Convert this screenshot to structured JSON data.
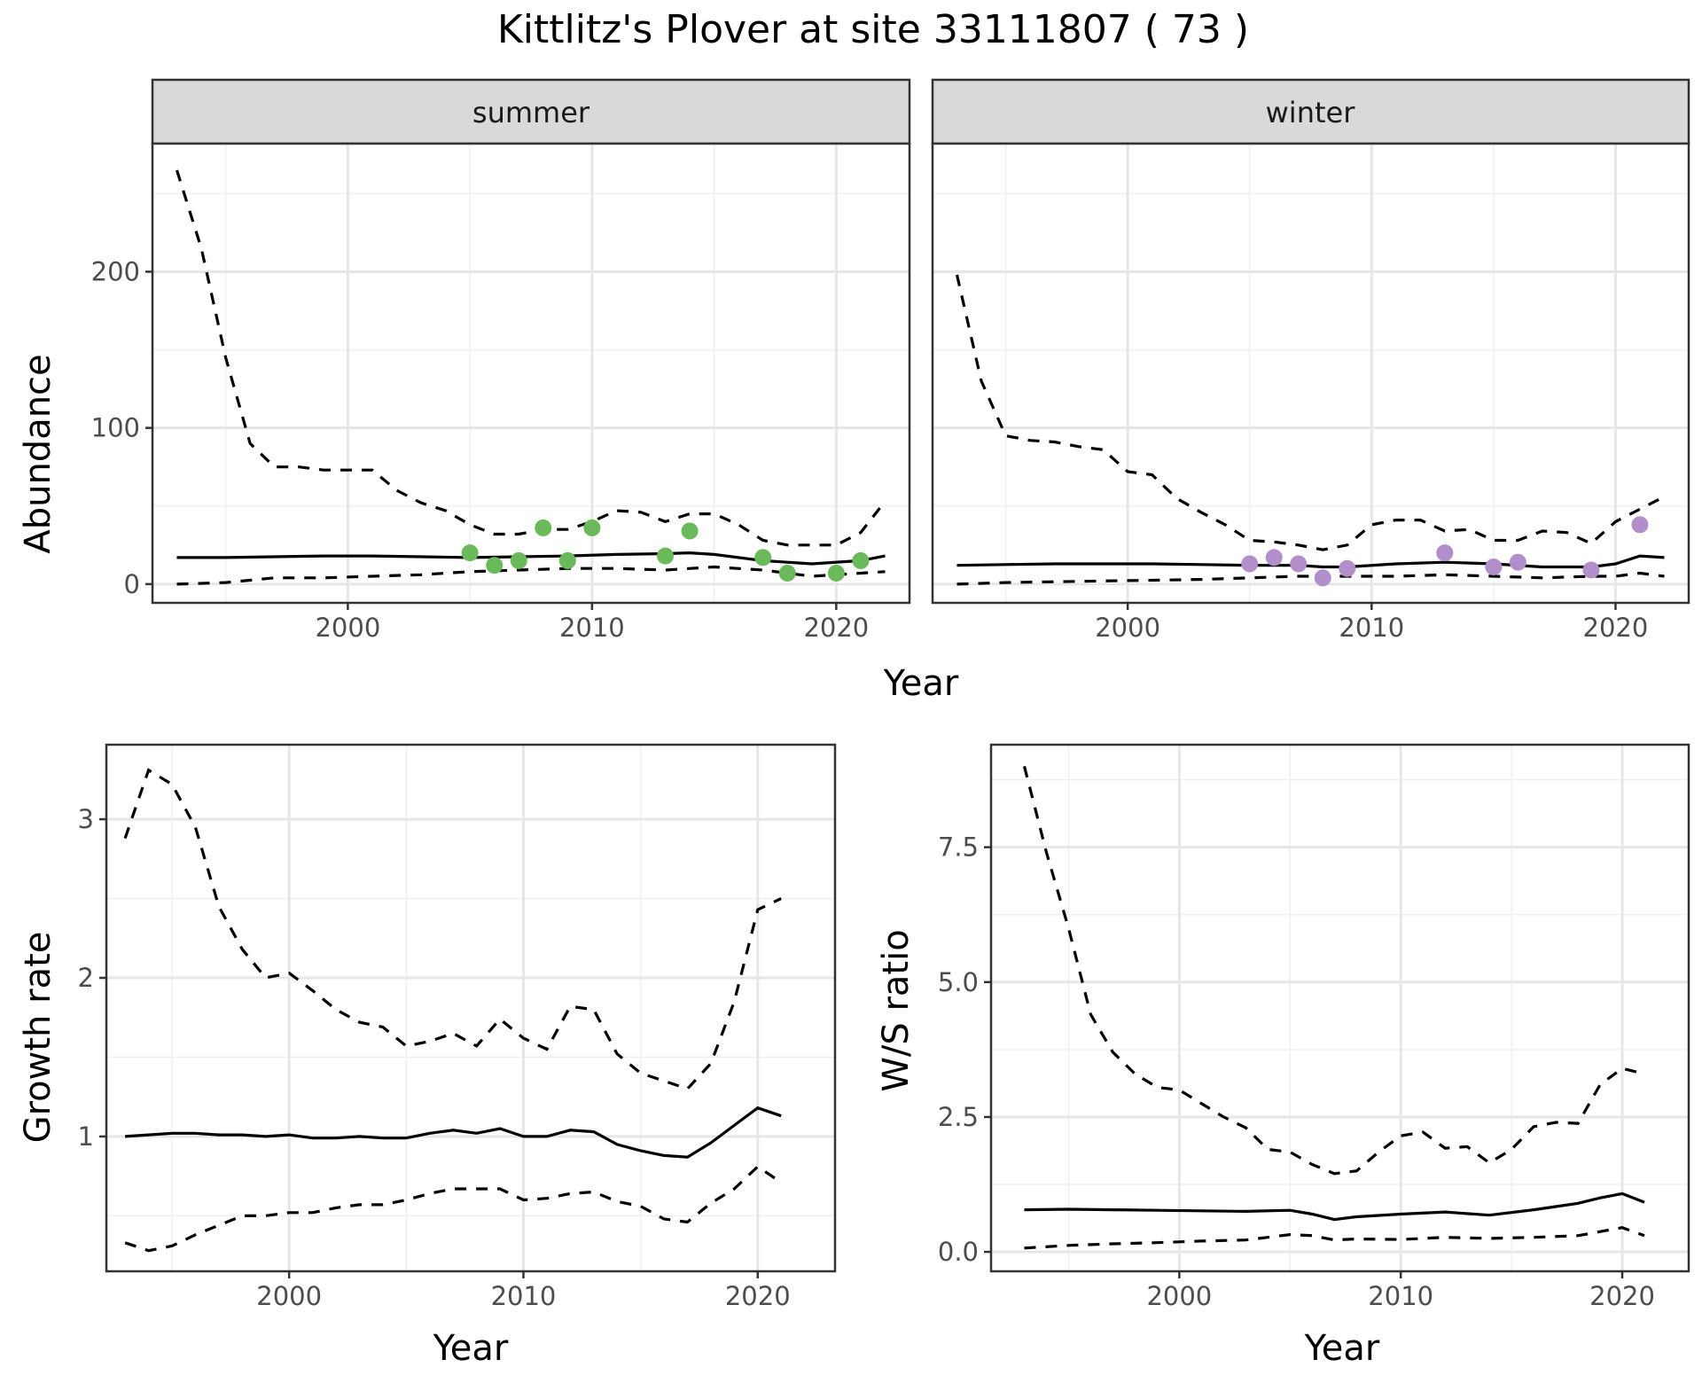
{
  "title": "Kittlitz's Plover at site 33111807 ( 73 )",
  "charts": [
    {
      "type": "line",
      "strip": "summer",
      "ylabel": "Abundance",
      "xlim": [
        1992,
        2023
      ],
      "ylim": [
        -12,
        282
      ],
      "yticks": [
        {
          "v": 0,
          "label": "0"
        },
        {
          "v": 100,
          "label": "100"
        },
        {
          "v": 200,
          "label": "200"
        }
      ],
      "ygrid_minor": [
        50,
        150,
        250
      ],
      "xticks": [
        {
          "v": 2000,
          "label": "2000"
        },
        {
          "v": 2010,
          "label": "2010"
        },
        {
          "v": 2020,
          "label": "2020"
        }
      ],
      "xgrid_minor": [
        1995,
        2005,
        2015
      ],
      "point_color": "#6ab95a",
      "mean": {
        "x": [
          1993,
          1995,
          1997,
          1999,
          2001,
          2003,
          2005,
          2007,
          2009,
          2011,
          2013,
          2014,
          2015,
          2017,
          2019,
          2021,
          2022
        ],
        "y": [
          17,
          17,
          17.5,
          18,
          18,
          17.5,
          17,
          17.5,
          18,
          19,
          19.5,
          20,
          19,
          15,
          13,
          15,
          18
        ]
      },
      "upper": {
        "x": [
          1993,
          1994,
          1995,
          1996,
          1997,
          1998,
          1999,
          2000,
          2001,
          2002,
          2003,
          2004,
          2005,
          2006,
          2007,
          2008,
          2009,
          2010,
          2011,
          2012,
          2013,
          2014,
          2015,
          2016,
          2017,
          2018,
          2019,
          2020,
          2021,
          2022
        ],
        "y": [
          265,
          215,
          145,
          90,
          75,
          75,
          73,
          73,
          73,
          60,
          52,
          47,
          38,
          32,
          32,
          35,
          35,
          40,
          47,
          46,
          40,
          45,
          45,
          38,
          28,
          25,
          25,
          25,
          33,
          53
        ]
      },
      "lower": {
        "x": [
          1993,
          1995,
          1997,
          1999,
          2001,
          2003,
          2005,
          2007,
          2009,
          2011,
          2013,
          2015,
          2017,
          2019,
          2021,
          2022
        ],
        "y": [
          0,
          1,
          4,
          4,
          5,
          6,
          8,
          9,
          10,
          10,
          9,
          11,
          9,
          5,
          7,
          8
        ]
      },
      "points": {
        "x": [
          2005,
          2006,
          2007,
          2008,
          2009,
          2010,
          2013,
          2014,
          2017,
          2018,
          2020,
          2021
        ],
        "y": [
          20,
          12,
          15,
          36,
          15,
          36,
          18,
          34,
          17,
          7,
          7,
          15
        ]
      }
    },
    {
      "type": "line",
      "strip": "winter",
      "ylabel": "",
      "xlim": [
        1992,
        2023
      ],
      "ylim": [
        -12,
        282
      ],
      "yticks": [],
      "ygrid_major": [
        0,
        100,
        200
      ],
      "ygrid_minor": [
        50,
        150,
        250
      ],
      "xticks": [
        {
          "v": 2000,
          "label": "2000"
        },
        {
          "v": 2010,
          "label": "2010"
        },
        {
          "v": 2020,
          "label": "2020"
        }
      ],
      "xgrid_minor": [
        1995,
        2005,
        2015
      ],
      "point_color": "#b18fca",
      "mean": {
        "x": [
          1993,
          1995,
          1997,
          1999,
          2001,
          2003,
          2005,
          2007,
          2008,
          2009,
          2011,
          2013,
          2015,
          2017,
          2019,
          2020,
          2021,
          2022
        ],
        "y": [
          12,
          12.5,
          13,
          13,
          13,
          12.5,
          12,
          12,
          11,
          11,
          13,
          14,
          13,
          11,
          11,
          13,
          18,
          17
        ]
      },
      "upper": {
        "x": [
          1993,
          1994,
          1995,
          1996,
          1997,
          1998,
          1999,
          2000,
          2001,
          2002,
          2003,
          2004,
          2005,
          2006,
          2007,
          2008,
          2009,
          2010,
          2011,
          2012,
          2013,
          2014,
          2015,
          2016,
          2017,
          2018,
          2019,
          2020,
          2021,
          2022
        ],
        "y": [
          198,
          130,
          95,
          92,
          91,
          88,
          86,
          72,
          70,
          55,
          46,
          38,
          28,
          27,
          25,
          22,
          25,
          38,
          41,
          41,
          34,
          35,
          28,
          28,
          34,
          33,
          26,
          40,
          48,
          56
        ]
      },
      "lower": {
        "x": [
          1993,
          1995,
          1997,
          1999,
          2001,
          2003,
          2005,
          2007,
          2009,
          2011,
          2013,
          2015,
          2017,
          2019,
          2020,
          2021,
          2022
        ],
        "y": [
          0,
          1,
          1.5,
          2,
          2.5,
          3,
          4,
          5,
          5,
          5,
          6,
          5,
          4,
          5,
          5,
          7,
          5
        ]
      },
      "points": {
        "x": [
          2005,
          2006,
          2007,
          2008,
          2009,
          2013,
          2015,
          2016,
          2019,
          2021
        ],
        "y": [
          13,
          17,
          13,
          4,
          10,
          20,
          11,
          14,
          9,
          38
        ]
      }
    },
    {
      "type": "line",
      "strip": "",
      "ylabel": "Growth rate",
      "xlim": [
        1992.2,
        2023.3
      ],
      "ylim": [
        0.15,
        3.47
      ],
      "yticks": [
        {
          "v": 1,
          "label": "1"
        },
        {
          "v": 2,
          "label": "2"
        },
        {
          "v": 3,
          "label": "3"
        }
      ],
      "ygrid_minor": [
        0.5,
        1.5,
        2.5,
        3.0
      ],
      "xticks": [
        {
          "v": 2000,
          "label": "2000"
        },
        {
          "v": 2010,
          "label": "2010"
        },
        {
          "v": 2020,
          "label": "2020"
        }
      ],
      "xgrid_minor": [
        1995,
        2005,
        2015
      ],
      "mean": {
        "x": [
          1993,
          1994,
          1995,
          1996,
          1997,
          1998,
          1999,
          2000,
          2001,
          2002,
          2003,
          2004,
          2005,
          2006,
          2007,
          2008,
          2009,
          2010,
          2011,
          2012,
          2013,
          2014,
          2015,
          2016,
          2017,
          2018,
          2019,
          2020,
          2021
        ],
        "y": [
          1.0,
          1.01,
          1.02,
          1.02,
          1.01,
          1.01,
          1.0,
          1.01,
          0.99,
          0.99,
          1.0,
          0.99,
          0.99,
          1.02,
          1.04,
          1.02,
          1.05,
          1.0,
          1.0,
          1.04,
          1.03,
          0.95,
          0.91,
          0.88,
          0.87,
          0.96,
          1.07,
          1.18,
          1.13
        ]
      },
      "upper": {
        "x": [
          1993,
          1994,
          1995,
          1996,
          1997,
          1998,
          1999,
          2000,
          2001,
          2002,
          2003,
          2004,
          2005,
          2006,
          2007,
          2008,
          2009,
          2010,
          2011,
          2012,
          2013,
          2014,
          2015,
          2016,
          2017,
          2018,
          2019,
          2020,
          2021
        ],
        "y": [
          2.88,
          3.31,
          3.22,
          2.95,
          2.45,
          2.18,
          2.0,
          2.03,
          1.92,
          1.8,
          1.72,
          1.69,
          1.57,
          1.6,
          1.65,
          1.57,
          1.74,
          1.62,
          1.55,
          1.82,
          1.8,
          1.52,
          1.4,
          1.35,
          1.3,
          1.46,
          1.85,
          2.43,
          2.5
        ]
      },
      "lower": {
        "x": [
          1993,
          1994,
          1995,
          1996,
          1997,
          1998,
          1999,
          2000,
          2001,
          2002,
          2003,
          2004,
          2005,
          2006,
          2007,
          2008,
          2009,
          2010,
          2011,
          2012,
          2013,
          2014,
          2015,
          2016,
          2017,
          2018,
          2019,
          2020,
          2021
        ],
        "y": [
          0.33,
          0.28,
          0.31,
          0.38,
          0.44,
          0.5,
          0.5,
          0.52,
          0.52,
          0.55,
          0.57,
          0.57,
          0.6,
          0.64,
          0.67,
          0.67,
          0.67,
          0.6,
          0.61,
          0.64,
          0.65,
          0.59,
          0.56,
          0.48,
          0.46,
          0.58,
          0.67,
          0.81,
          0.71
        ]
      }
    },
    {
      "type": "line",
      "strip": "",
      "ylabel": "W/S ratio",
      "xlim": [
        1991.5,
        2023.0
      ],
      "ylim": [
        -0.36,
        9.4
      ],
      "yticks": [
        {
          "v": 0,
          "label": "0.0"
        },
        {
          "v": 2.5,
          "label": "2.5"
        },
        {
          "v": 5,
          "label": "5.0"
        },
        {
          "v": 7.5,
          "label": "7.5"
        }
      ],
      "ygrid_minor": [
        1.25,
        3.75,
        6.25,
        8.75
      ],
      "xticks": [
        {
          "v": 2000,
          "label": "2000"
        },
        {
          "v": 2010,
          "label": "2010"
        },
        {
          "v": 2020,
          "label": "2020"
        }
      ],
      "xgrid_minor": [
        1995,
        2005,
        2015
      ],
      "mean": {
        "x": [
          1993,
          1995,
          1997,
          1999,
          2001,
          2003,
          2005,
          2006,
          2007,
          2008,
          2010,
          2012,
          2014,
          2016,
          2017,
          2018,
          2019,
          2020,
          2021
        ],
        "y": [
          0.78,
          0.79,
          0.78,
          0.77,
          0.76,
          0.75,
          0.77,
          0.7,
          0.6,
          0.65,
          0.7,
          0.74,
          0.68,
          0.78,
          0.84,
          0.9,
          1.0,
          1.08,
          0.92
        ]
      },
      "upper": {
        "x": [
          1993,
          1994,
          1995,
          1996,
          1997,
          1998,
          1999,
          2000,
          2001,
          2002,
          2003,
          2004,
          2005,
          2006,
          2007,
          2008,
          2009,
          2010,
          2011,
          2012,
          2013,
          2014,
          2015,
          2016,
          2017,
          2018,
          2019,
          2020,
          2021
        ],
        "y": [
          9.0,
          7.4,
          6.0,
          4.4,
          3.7,
          3.3,
          3.05,
          3.0,
          2.75,
          2.5,
          2.3,
          1.9,
          1.85,
          1.62,
          1.45,
          1.5,
          1.85,
          2.15,
          2.22,
          1.92,
          1.95,
          1.65,
          1.9,
          2.32,
          2.4,
          2.38,
          3.1,
          3.4,
          3.3
        ]
      },
      "lower": {
        "x": [
          1993,
          1995,
          1997,
          1999,
          2001,
          2003,
          2005,
          2006,
          2007,
          2008,
          2010,
          2012,
          2014,
          2016,
          2018,
          2020,
          2021
        ],
        "y": [
          0.07,
          0.12,
          0.15,
          0.17,
          0.2,
          0.22,
          0.32,
          0.3,
          0.22,
          0.24,
          0.23,
          0.27,
          0.25,
          0.27,
          0.3,
          0.45,
          0.3
        ]
      }
    }
  ],
  "axis_labels": {
    "x1": "Year",
    "x3": "Year",
    "x4": "Year"
  }
}
